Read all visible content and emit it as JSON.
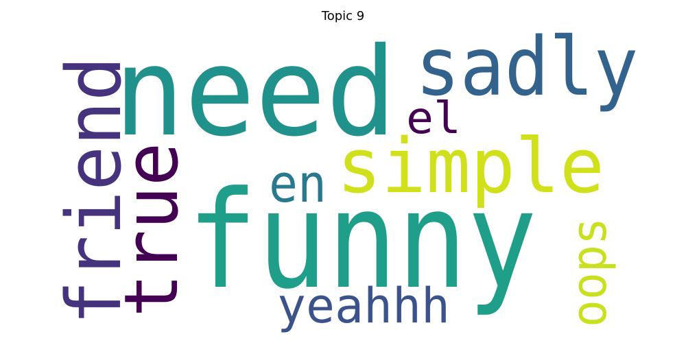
{
  "title": "Topic 9",
  "words": [
    {
      "id": "need",
      "text": "need",
      "color": "#21918c"
    },
    {
      "id": "funny",
      "text": "funny",
      "color": "#1f9e89"
    },
    {
      "id": "sadly",
      "text": "sadly",
      "color": "#33638d"
    },
    {
      "id": "friend",
      "text": "friend",
      "color": "#46337e"
    },
    {
      "id": "true",
      "text": "true",
      "color": "#440154"
    },
    {
      "id": "simple",
      "text": "simple",
      "color": "#d0e11c"
    },
    {
      "id": "el",
      "text": "el",
      "color": "#440154"
    },
    {
      "id": "en",
      "text": "en",
      "color": "#2a788e"
    },
    {
      "id": "yeahhh",
      "text": "yeahhh",
      "color": "#3b528b"
    },
    {
      "id": "oops",
      "text": "oops",
      "color": "#c8e020"
    }
  ]
}
